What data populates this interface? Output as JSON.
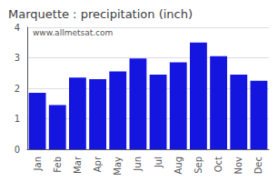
{
  "chart_data": {
    "type": "bar",
    "title": "Marquette : precipitation (inch)",
    "categories": [
      "Jan",
      "Feb",
      "Mar",
      "Apr",
      "May",
      "Jun",
      "Jul",
      "Aug",
      "Sep",
      "Oct",
      "Nov",
      "Dec"
    ],
    "values": [
      1.85,
      1.45,
      2.35,
      2.3,
      2.55,
      2.98,
      2.45,
      2.85,
      3.5,
      3.05,
      2.45,
      2.25
    ],
    "color": "#1515e0",
    "ylim": [
      0,
      4
    ],
    "yticks": [
      0,
      1,
      2,
      3,
      4
    ],
    "grid": true,
    "annotation": "www.allmetsat.com"
  }
}
